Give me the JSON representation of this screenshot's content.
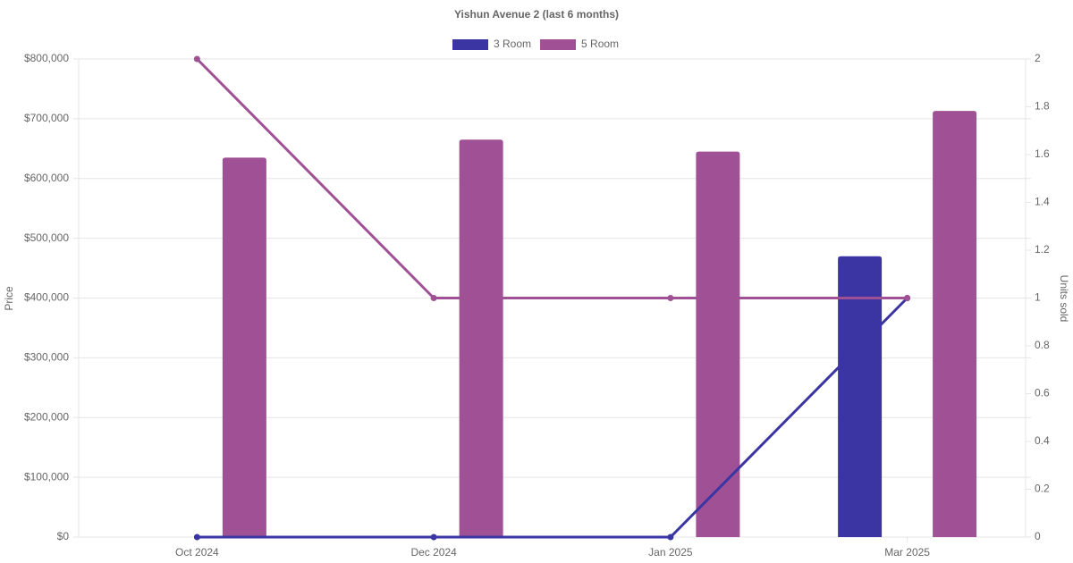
{
  "chart_data": {
    "type": "bar-line",
    "title": "Yishun Avenue 2 (last 6 months)",
    "categories": [
      "Oct 2024",
      "Dec 2024",
      "Jan 2025",
      "Mar 2025"
    ],
    "series": [
      {
        "name": "3 Room",
        "color": "#3a35a2",
        "values": [
          null,
          null,
          null,
          470000
        ],
        "units": [
          0,
          0,
          0,
          1
        ]
      },
      {
        "name": "5 Room",
        "color": "#a05195",
        "values": [
          635000,
          665000,
          645000,
          713000
        ],
        "units": [
          2,
          1,
          1,
          1
        ]
      }
    ],
    "y_label": "Price",
    "y2_label": "Units sold",
    "ylim": [
      0,
      800000
    ],
    "yticks": [
      {
        "value": 0,
        "label": "$0"
      },
      {
        "value": 100000,
        "label": "$100,000"
      },
      {
        "value": 200000,
        "label": "$200,000"
      },
      {
        "value": 300000,
        "label": "$300,000"
      },
      {
        "value": 400000,
        "label": "$400,000"
      },
      {
        "value": 500000,
        "label": "$500,000"
      },
      {
        "value": 600000,
        "label": "$600,000"
      },
      {
        "value": 700000,
        "label": "$700,000"
      },
      {
        "value": 800000,
        "label": "$800,000"
      }
    ],
    "y2lim": [
      0,
      2
    ],
    "y2ticks": [
      0,
      0.2,
      0.4,
      0.6,
      0.8,
      1,
      1.2,
      1.4,
      1.6,
      1.8,
      2
    ],
    "grid": true
  }
}
